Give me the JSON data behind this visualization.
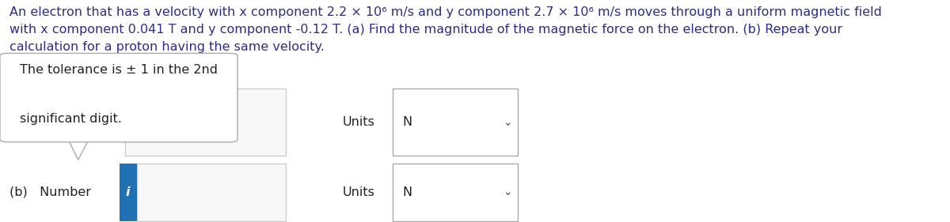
{
  "bg_color": "#ffffff",
  "text_color": "#2c2c8c",
  "paragraph": "An electron that has a velocity with x component 2.2 × 10⁶ m/s and y component 2.7 × 10⁶ m/s moves through a uniform magnetic field\nwith x component 0.041 T and y component -0.12 T. (a) Find the magnitude of the magnetic force on the electron. (b) Repeat your\ncalculation for a proton having the same velocity.",
  "tooltip_text_line1": "The tolerance is ± 1 in the 2nd",
  "tooltip_text_line2": "significant digit.",
  "units_label": "Units",
  "units_value": "N",
  "b_label": "(b)",
  "number_label": "Number",
  "input_box_color": "#f0f0f0",
  "input_box_border": "#cccccc",
  "units_box_color": "#ffffff",
  "units_box_border": "#aaaaaa",
  "info_btn_color": "#2070b4",
  "info_btn_text": "i",
  "tooltip_bg": "#ffffff",
  "tooltip_border": "#aaaaaa",
  "chevron_color": "#555555",
  "font_size_para": 11.5,
  "font_size_ui": 11.5
}
